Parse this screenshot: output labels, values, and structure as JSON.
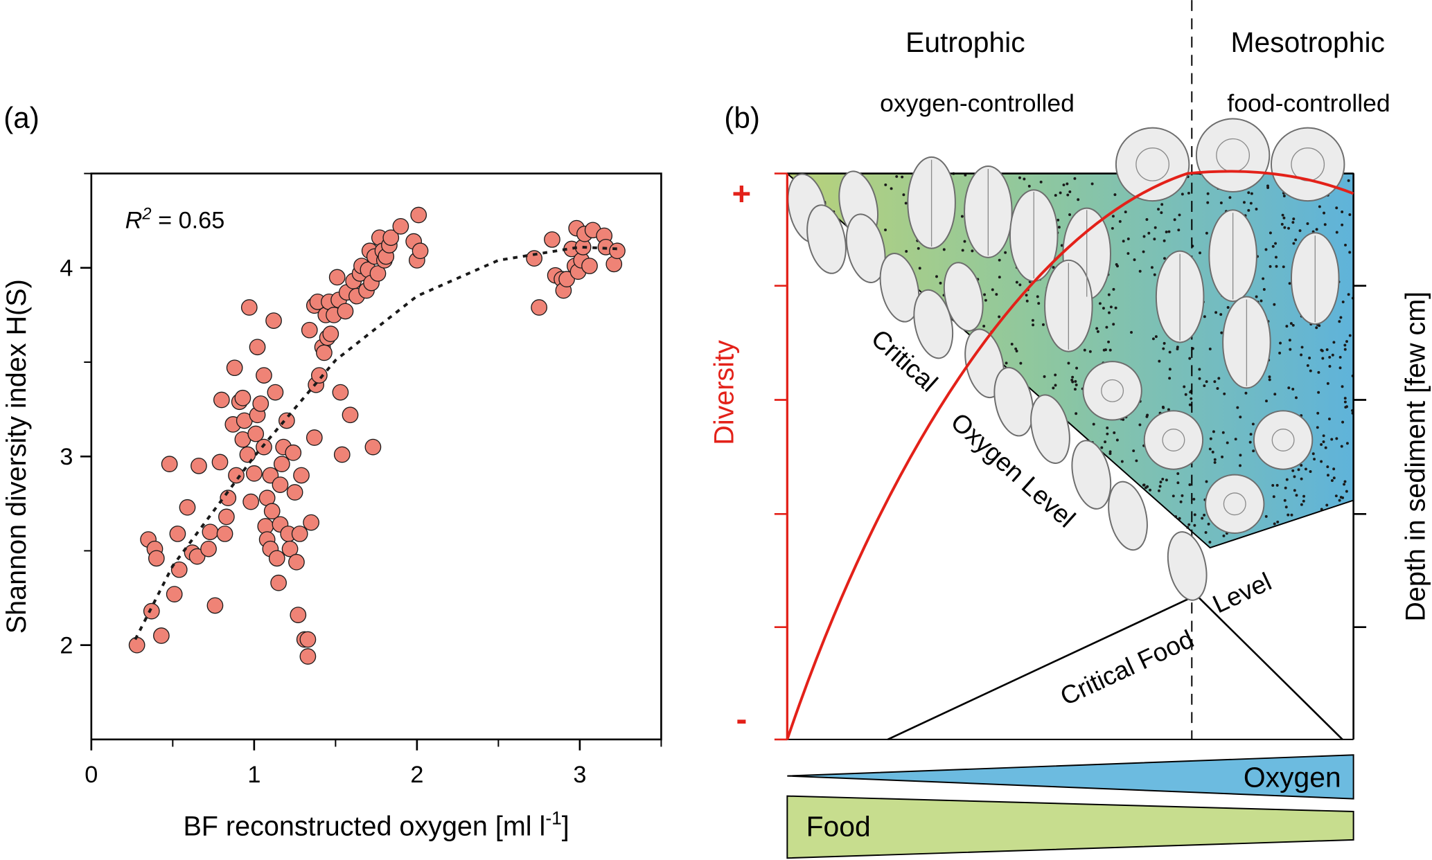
{
  "chart_data": {
    "type": "scatter",
    "label": "(a)",
    "xlabel": "BF reconstructed oxygen [ml l",
    "xlabel_sup": "-1",
    "xlabel_end": "]",
    "ylabel": "Shannon diversity index H(S)",
    "annotation": {
      "symbol": "R",
      "sup": "2",
      "text": " = 0.65"
    },
    "xlim": [
      0,
      3.5
    ],
    "ylim": [
      1.5,
      4.5
    ],
    "xticks": [
      0,
      1,
      2,
      3
    ],
    "yticks": [
      2,
      3,
      4
    ],
    "xminor": [
      0.5,
      1.5,
      2.5,
      3.5
    ],
    "yminor": [
      2.5,
      3.5,
      4.5
    ],
    "color": "#ef8376",
    "edge_color": "#1a1a1a",
    "x": [
      0.28,
      0.37,
      0.35,
      0.39,
      0.4,
      0.43,
      0.48,
      0.51,
      0.53,
      0.54,
      0.59,
      0.62,
      0.65,
      0.66,
      0.72,
      0.73,
      0.76,
      0.79,
      0.8,
      0.82,
      0.83,
      0.84,
      0.87,
      0.88,
      0.89,
      0.91,
      0.93,
      0.93,
      0.94,
      0.96,
      0.97,
      0.98,
      1.0,
      1.01,
      1.02,
      1.02,
      1.04,
      1.06,
      1.06,
      1.07,
      1.08,
      1.08,
      1.1,
      1.1,
      1.11,
      1.12,
      1.13,
      1.14,
      1.15,
      1.16,
      1.16,
      1.17,
      1.18,
      1.2,
      1.21,
      1.22,
      1.24,
      1.25,
      1.26,
      1.27,
      1.28,
      1.29,
      1.31,
      1.33,
      1.33,
      1.34,
      1.35,
      1.37,
      1.37,
      1.38,
      1.39,
      1.4,
      1.42,
      1.43,
      1.44,
      1.45,
      1.46,
      1.47,
      1.49,
      1.51,
      1.52,
      1.53,
      1.54,
      1.56,
      1.57,
      1.59,
      1.61,
      1.63,
      1.65,
      1.66,
      1.69,
      1.7,
      1.71,
      1.72,
      1.73,
      1.74,
      1.76,
      1.77,
      1.79,
      1.8,
      1.81,
      1.83,
      1.84,
      1.9,
      1.98,
      2.0,
      2.01,
      2.02,
      2.72,
      2.75,
      2.83,
      2.85,
      2.89,
      2.9,
      2.92,
      2.95,
      2.97,
      2.98,
      2.99,
      3.01,
      3.02,
      3.03,
      3.06,
      3.08,
      3.15,
      3.16,
      3.21,
      3.23
    ],
    "values": [
      2.0,
      2.18,
      2.56,
      2.51,
      2.46,
      2.05,
      2.96,
      2.27,
      2.59,
      2.4,
      2.73,
      2.49,
      2.47,
      2.95,
      2.51,
      2.6,
      2.21,
      2.97,
      3.3,
      2.59,
      2.68,
      2.78,
      3.17,
      3.47,
      2.9,
      3.29,
      3.31,
      3.09,
      3.19,
      3.01,
      3.79,
      2.76,
      2.91,
      3.12,
      3.58,
      3.22,
      3.28,
      3.43,
      3.05,
      2.63,
      2.78,
      2.56,
      2.51,
      2.9,
      2.71,
      3.72,
      3.34,
      2.46,
      2.33,
      2.85,
      2.64,
      2.96,
      3.05,
      3.19,
      2.59,
      2.51,
      3.02,
      2.81,
      2.44,
      2.16,
      2.59,
      2.9,
      2.03,
      2.03,
      1.94,
      3.67,
      2.65,
      3.1,
      3.8,
      3.38,
      3.82,
      3.43,
      3.58,
      3.55,
      3.75,
      3.63,
      3.82,
      3.65,
      3.75,
      3.95,
      3.83,
      3.34,
      3.01,
      3.77,
      3.87,
      3.22,
      3.93,
      3.85,
      3.97,
      4.01,
      3.88,
      3.99,
      4.09,
      3.92,
      3.05,
      4.06,
      3.97,
      4.16,
      4.09,
      4.04,
      4.06,
      4.12,
      4.16,
      4.22,
      4.14,
      4.04,
      4.28,
      4.09,
      4.05,
      3.79,
      4.15,
      3.96,
      3.94,
      3.88,
      3.94,
      4.1,
      4.01,
      4.21,
      3.98,
      4.04,
      4.11,
      4.18,
      4.01,
      4.2,
      4.17,
      4.11,
      4.02,
      4.09
    ],
    "fit_line": {
      "x": [
        0.27,
        0.5,
        1,
        1.5,
        2,
        2.5,
        3,
        3.25
      ],
      "values": [
        2.03,
        2.42,
        3.0,
        3.51,
        3.85,
        4.04,
        4.11,
        4.1
      ],
      "color": "#1a1a1a"
    }
  },
  "diagram": {
    "label": "(b)",
    "columns": [
      {
        "title": "Eutrophic",
        "subtitle": "oxygen-controlled"
      },
      {
        "title": "Mesotrophic",
        "subtitle": "food-controlled"
      }
    ],
    "left_axis": {
      "label": "Diversity",
      "top": "+",
      "bottom": "-"
    },
    "right_axis_label": "Depth in sediment [few cm]",
    "line_labels": [
      "Critical",
      "Oxygen Level",
      "Critical Food",
      "Level"
    ],
    "wedges": [
      "Oxygen",
      "Food"
    ]
  }
}
